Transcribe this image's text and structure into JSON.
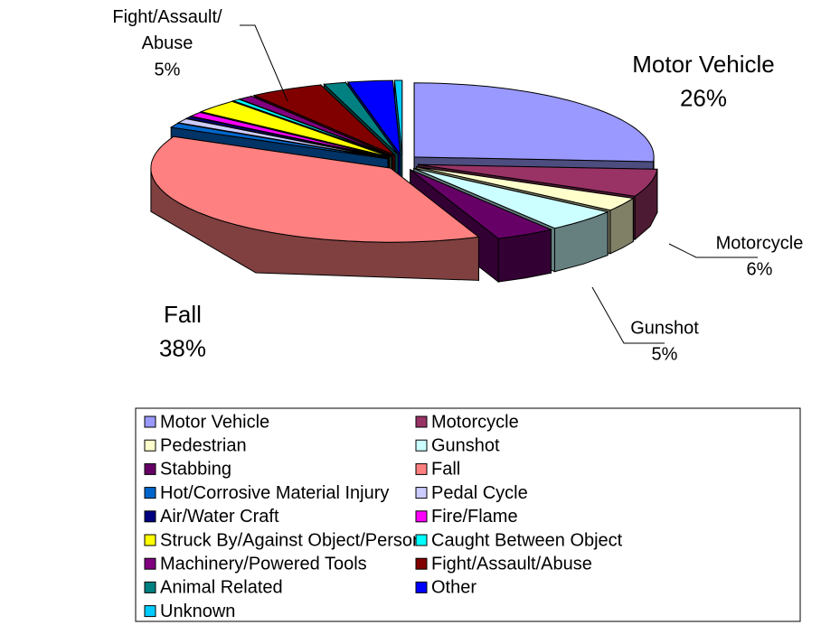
{
  "chart_data": {
    "type": "pie",
    "exploded": true,
    "three_d": true,
    "legend": "bottom",
    "categories": [
      "Motor Vehicle",
      "Motorcycle",
      "Pedestrian",
      "Gunshot",
      "Stabbing",
      "Fall",
      "Hot/Corrosive Material Injury",
      "Pedal Cycle",
      "Air/Water Craft",
      "Fire/Flame",
      "Struck By/Against Object/Person",
      "Caught Between Object",
      "Machinery/Powered Tools",
      "Fight/Assault/Abuse",
      "Animal Related",
      "Other",
      "Unknown"
    ],
    "values": [
      26,
      6,
      3,
      5,
      4,
      38,
      1,
      1,
      0.5,
      1,
      3,
      0.5,
      1,
      5,
      1.5,
      3,
      0.5
    ],
    "value_labels": [
      "26%",
      "6%",
      null,
      "5%",
      null,
      "38%",
      null,
      null,
      null,
      null,
      null,
      null,
      null,
      "5%",
      null,
      null,
      null
    ],
    "colors": [
      "#9999ff",
      "#993366",
      "#ffffcc",
      "#ccffff",
      "#660066",
      "#ff8080",
      "#0066cc",
      "#ccccff",
      "#000080",
      "#ff00ff",
      "#ffff00",
      "#00ffff",
      "#800080",
      "#800000",
      "#008080",
      "#0000ff",
      "#00ccff"
    ]
  }
}
